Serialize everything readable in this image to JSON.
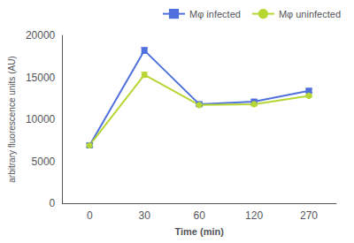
{
  "chart_data": {
    "type": "line",
    "xlabel": "Time (min)",
    "ylabel": "arbitrary fluorescence units (AU)",
    "categories": [
      "0",
      "30",
      "60",
      "120",
      "270"
    ],
    "series": [
      {
        "name": "Mφ infected",
        "marker": "square",
        "values": [
          6900,
          18200,
          11800,
          12100,
          13400
        ],
        "errors": [
          200,
          350,
          200,
          250,
          200
        ]
      },
      {
        "name": "Mφ uninfected",
        "marker": "circle",
        "values": [
          6900,
          15300,
          11700,
          11800,
          12800
        ],
        "errors": [
          200,
          300,
          150,
          200,
          150
        ]
      }
    ],
    "ylim": [
      0,
      20000
    ],
    "yticks": [
      0,
      5000,
      10000,
      15000,
      20000
    ],
    "grid": false,
    "legend": "upper right"
  }
}
